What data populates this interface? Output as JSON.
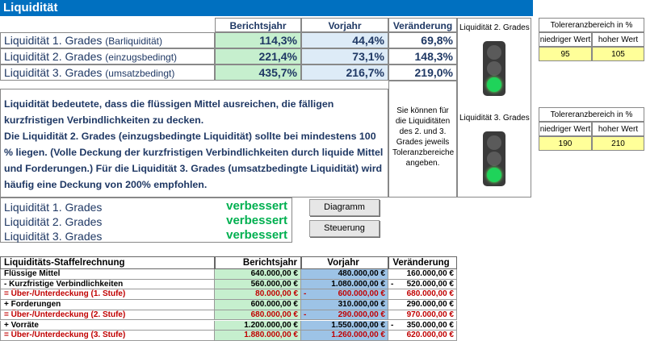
{
  "title": "Liquidität",
  "summary": {
    "columns": [
      "Berichtsjahr",
      "Vorjahr",
      "Veränderung"
    ],
    "column_colors": [
      "#c6efce",
      "#ddebf7",
      "#ffffff"
    ],
    "rows": [
      {
        "label": "Liquidität 1. Grades",
        "note": "(Barliquidität)",
        "values": [
          "114,3%",
          "44,4%",
          "69,8%"
        ]
      },
      {
        "label": "Liquidität 2. Grades",
        "note": "(einzugsbedingt)",
        "values": [
          "221,4%",
          "73,1%",
          "148,3%"
        ]
      },
      {
        "label": "Liquidität 3. Grades",
        "note": "(umsatzbedingt)",
        "values": [
          "435,7%",
          "216,7%",
          "219,0%"
        ]
      }
    ]
  },
  "lights": [
    {
      "label": "Liquidität 2. Grades"
    },
    {
      "label": "Liquidität 3. Grades"
    }
  ],
  "hint": "Sie können für die Liquiditäten des 2. und 3. Grades jeweils Toleranzbereiche angeben.",
  "tolerance": [
    {
      "title": "Tolereranzbereich in %",
      "low_label": "niedriger Wert",
      "high_label": "hoher Wert",
      "low": 95,
      "high": 105
    },
    {
      "title": "Tolereranzbereich in %",
      "low_label": "niedriger Wert",
      "high_label": "hoher Wert",
      "low": 190,
      "high": 210
    }
  ],
  "description": [
    "Liquidität bedeutete, dass die flüssigen Mittel ausreichen, die fälligen kurzfristigen Verbindlichkeiten zu decken.",
    "Die Liquidität 2. Grades (einzugsbedingte Liquidität) sollte bei mindestens 100 % liegen. (Volle Deckung der  kurzfristigen Verbindlichkeiten durch liquide Mittel und Forderungen.) Für die Liquidität 3. Grades (umsatzbedingte Liquidität) wird häufig eine Deckung von 200% empfohlen."
  ],
  "status": [
    {
      "label": "Liquidität 1. Grades",
      "value": "verbessert"
    },
    {
      "label": "Liquidität 2. Grades",
      "value": "verbessert"
    },
    {
      "label": "Liquidität 3. Grades",
      "value": "verbessert"
    }
  ],
  "buttons": [
    "Diagramm",
    "Steuerung"
  ],
  "staffel": {
    "title": "Liquiditäts-Staffelrechnung",
    "columns": [
      "Berichtsjahr",
      "Vorjahr",
      "Veränderung"
    ],
    "column_colors": [
      "#c6efce",
      "#9dc3e6",
      "#ffffff"
    ],
    "rows": [
      {
        "label": "Flüssige Mittel",
        "color": "#000000",
        "cells": [
          "640.000,00 €",
          "480.000,00 €",
          "160.000,00 €"
        ]
      },
      {
        "label": "-  Kurzfristige Verbindlichkeiten",
        "color": "#000000",
        "cells": [
          "560.000,00 €",
          "1.080.000,00 €",
          {
            "sign": "-",
            "amount": "520.000,00 €"
          }
        ]
      },
      {
        "label": "= Über-/Unterdeckung (1. Stufe)",
        "color": "#c00000",
        "cells": [
          "80.000,00 €",
          {
            "sign": "-",
            "amount": "600.000,00 €"
          },
          "680.000,00 €"
        ]
      },
      {
        "label": "+ Forderungen",
        "color": "#000000",
        "cells": [
          "600.000,00 €",
          "310.000,00 €",
          "290.000,00 €"
        ]
      },
      {
        "label": "= Über-/Unterdeckung (2. Stufe)",
        "color": "#c00000",
        "cells": [
          "680.000,00 €",
          {
            "sign": "-",
            "amount": "290.000,00 €"
          },
          "970.000,00 €"
        ]
      },
      {
        "label": "+ Vorräte",
        "color": "#000000",
        "cells": [
          "1.200.000,00 €",
          "1.550.000,00 €",
          {
            "sign": "-",
            "amount": "350.000,00 €"
          }
        ]
      },
      {
        "label": "= Über-/Unterdeckung (3. Stufe)",
        "color": "#c00000",
        "cells": [
          "1.880.000,00 €",
          "1.260.000,00 €",
          "620.000,00 €"
        ]
      }
    ]
  }
}
